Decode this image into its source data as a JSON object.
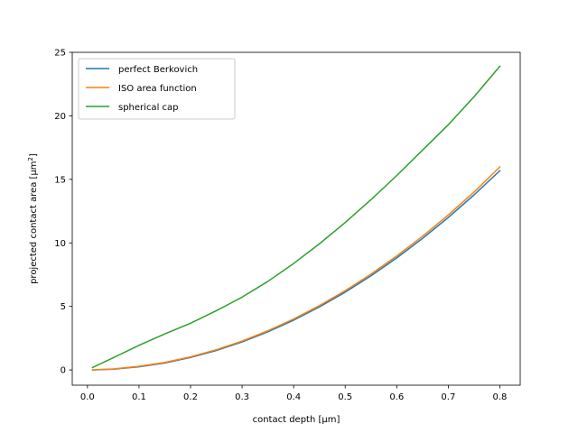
{
  "chart_data": {
    "type": "line",
    "xlabel": "contact depth [µm]",
    "ylabel": {
      "main": "projected contact area [µm",
      "sup": "2",
      "close": "]"
    },
    "xlim": [
      -0.0295,
      0.8395
    ],
    "ylim": [
      -1.2,
      25.0
    ],
    "xticks": [
      0.0,
      0.1,
      0.2,
      0.3,
      0.4,
      0.5,
      0.6,
      0.7,
      0.8
    ],
    "xtick_labels": [
      "0.0",
      "0.1",
      "0.2",
      "0.3",
      "0.4",
      "0.5",
      "0.6",
      "0.7",
      "0.8"
    ],
    "yticks": [
      0,
      5,
      10,
      15,
      20,
      25
    ],
    "ytick_labels": [
      "0",
      "5",
      "10",
      "15",
      "20",
      "25"
    ],
    "grid": false,
    "legend_position": "top-left",
    "x": [
      0.01,
      0.05,
      0.1,
      0.15,
      0.2,
      0.25,
      0.3,
      0.35,
      0.4,
      0.45,
      0.5,
      0.55,
      0.6,
      0.65,
      0.7,
      0.75,
      0.8
    ],
    "series": [
      {
        "name": "perfect Berkovich",
        "color": "#1f77b4",
        "values": [
          0.0024,
          0.061,
          0.245,
          0.551,
          0.98,
          1.531,
          2.205,
          3.001,
          3.92,
          4.961,
          6.125,
          7.411,
          8.82,
          10.351,
          12.005,
          13.781,
          15.68
        ]
      },
      {
        "name": "ISO area function",
        "color": "#ff7f0e",
        "values": [
          0.01,
          0.08,
          0.28,
          0.59,
          1.03,
          1.59,
          2.27,
          3.08,
          4.01,
          5.06,
          6.24,
          7.54,
          8.97,
          10.52,
          12.2,
          14.0,
          15.98
        ]
      },
      {
        "name": "spherical cap",
        "color": "#2ca02c",
        "values": [
          0.19,
          0.96,
          1.94,
          2.83,
          3.68,
          4.66,
          5.73,
          6.97,
          8.38,
          9.93,
          11.6,
          13.4,
          15.3,
          17.3,
          19.3,
          21.5,
          23.9
        ]
      }
    ]
  }
}
